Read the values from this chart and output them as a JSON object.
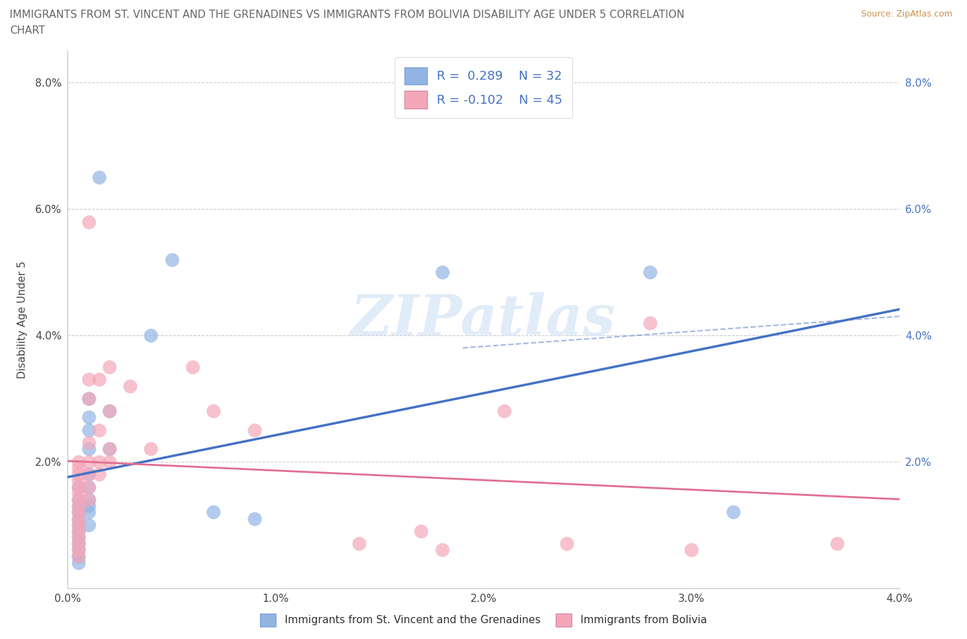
{
  "title_line1": "IMMIGRANTS FROM ST. VINCENT AND THE GRENADINES VS IMMIGRANTS FROM BOLIVIA DISABILITY AGE UNDER 5 CORRELATION",
  "title_line2": "CHART",
  "source": "Source: ZipAtlas.com",
  "ylabel": "Disability Age Under 5",
  "xlim": [
    0.0,
    0.04
  ],
  "ylim": [
    0.0,
    0.085
  ],
  "xticks": [
    0.0,
    0.01,
    0.02,
    0.03,
    0.04
  ],
  "yticks": [
    0.0,
    0.02,
    0.04,
    0.06,
    0.08
  ],
  "xtick_labels": [
    "0.0%",
    "1.0%",
    "2.0%",
    "3.0%",
    "4.0%"
  ],
  "ytick_labels_left": [
    "",
    "2.0%",
    "4.0%",
    "6.0%",
    "8.0%"
  ],
  "ytick_labels_right": [
    "",
    "2.0%",
    "4.0%",
    "6.0%",
    "8.0%"
  ],
  "color_blue": "#92b4e3",
  "color_pink": "#f4a7b9",
  "color_blue_line": "#4472c4",
  "color_pink_line": "#e07090",
  "watermark_text": "ZIPatlas",
  "watermark_color": "#ddeaf8",
  "R_blue": 0.289,
  "N_blue": 32,
  "R_pink": -0.102,
  "N_pink": 45,
  "blue_scatter": [
    [
      0.0005,
      0.016
    ],
    [
      0.0005,
      0.014
    ],
    [
      0.0005,
      0.013
    ],
    [
      0.0005,
      0.012
    ],
    [
      0.0005,
      0.011
    ],
    [
      0.0005,
      0.01
    ],
    [
      0.0005,
      0.009
    ],
    [
      0.0005,
      0.008
    ],
    [
      0.0005,
      0.007
    ],
    [
      0.0005,
      0.006
    ],
    [
      0.0005,
      0.005
    ],
    [
      0.0005,
      0.004
    ],
    [
      0.001,
      0.03
    ],
    [
      0.001,
      0.027
    ],
    [
      0.001,
      0.025
    ],
    [
      0.001,
      0.022
    ],
    [
      0.001,
      0.018
    ],
    [
      0.001,
      0.016
    ],
    [
      0.001,
      0.014
    ],
    [
      0.001,
      0.013
    ],
    [
      0.001,
      0.012
    ],
    [
      0.001,
      0.01
    ],
    [
      0.0015,
      0.065
    ],
    [
      0.002,
      0.028
    ],
    [
      0.002,
      0.022
    ],
    [
      0.004,
      0.04
    ],
    [
      0.005,
      0.052
    ],
    [
      0.007,
      0.012
    ],
    [
      0.009,
      0.011
    ],
    [
      0.018,
      0.05
    ],
    [
      0.028,
      0.05
    ],
    [
      0.032,
      0.012
    ]
  ],
  "pink_scatter": [
    [
      0.0005,
      0.02
    ],
    [
      0.0005,
      0.019
    ],
    [
      0.0005,
      0.018
    ],
    [
      0.0005,
      0.017
    ],
    [
      0.0005,
      0.016
    ],
    [
      0.0005,
      0.015
    ],
    [
      0.0005,
      0.014
    ],
    [
      0.0005,
      0.013
    ],
    [
      0.0005,
      0.012
    ],
    [
      0.0005,
      0.011
    ],
    [
      0.0005,
      0.01
    ],
    [
      0.0005,
      0.009
    ],
    [
      0.0005,
      0.008
    ],
    [
      0.0005,
      0.007
    ],
    [
      0.0005,
      0.006
    ],
    [
      0.0005,
      0.005
    ],
    [
      0.001,
      0.058
    ],
    [
      0.001,
      0.033
    ],
    [
      0.001,
      0.03
    ],
    [
      0.001,
      0.023
    ],
    [
      0.001,
      0.02
    ],
    [
      0.001,
      0.018
    ],
    [
      0.001,
      0.016
    ],
    [
      0.001,
      0.014
    ],
    [
      0.0015,
      0.033
    ],
    [
      0.0015,
      0.025
    ],
    [
      0.0015,
      0.02
    ],
    [
      0.0015,
      0.018
    ],
    [
      0.002,
      0.035
    ],
    [
      0.002,
      0.028
    ],
    [
      0.002,
      0.022
    ],
    [
      0.002,
      0.02
    ],
    [
      0.003,
      0.032
    ],
    [
      0.004,
      0.022
    ],
    [
      0.006,
      0.035
    ],
    [
      0.007,
      0.028
    ],
    [
      0.009,
      0.025
    ],
    [
      0.014,
      0.007
    ],
    [
      0.017,
      0.009
    ],
    [
      0.018,
      0.006
    ],
    [
      0.021,
      0.028
    ],
    [
      0.024,
      0.007
    ],
    [
      0.028,
      0.042
    ],
    [
      0.03,
      0.006
    ],
    [
      0.037,
      0.007
    ]
  ],
  "blue_regline": [
    0.0,
    0.04,
    0.015,
    0.045
  ],
  "pink_regline": [
    0.0,
    0.04,
    0.02,
    0.013
  ],
  "blue_dashed_line": [
    0.019,
    0.04,
    0.038,
    0.043
  ]
}
